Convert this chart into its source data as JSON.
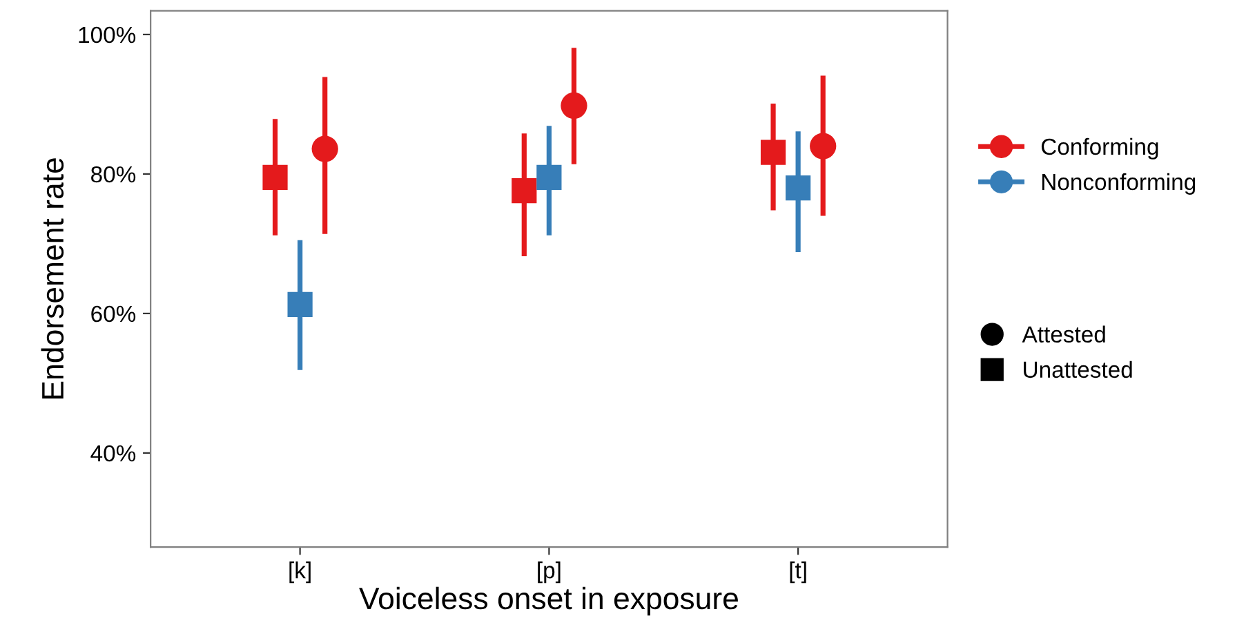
{
  "chart_data": {
    "type": "scatter",
    "xlabel": "Voiceless onset in exposure",
    "ylabel": "Endorsement rate",
    "categories": [
      "[k]",
      "[p]",
      "[t]"
    ],
    "ylim": [
      26.5,
      103.4
    ],
    "yticks": [
      {
        "value": 40,
        "label": "40%"
      },
      {
        "value": 60,
        "label": "60%"
      },
      {
        "value": 80,
        "label": "80%"
      },
      {
        "value": 100,
        "label": "100%"
      }
    ],
    "grid": false,
    "legend": "right",
    "series": [
      {
        "name": "Conforming",
        "color": "#e41a1c",
        "marker": "square",
        "values": [
          79.5,
          77.6,
          83.1
        ],
        "errors": [
          [
            71.2,
            87.9
          ],
          [
            68.2,
            85.8
          ],
          [
            74.8,
            90.1
          ]
        ]
      },
      {
        "name": "Nonconforming",
        "color": "#377eb8",
        "marker": "square",
        "values": [
          61.3,
          79.5,
          78.0
        ],
        "errors": [
          [
            51.9,
            70.5
          ],
          [
            71.2,
            86.9
          ],
          [
            68.8,
            86.1
          ]
        ]
      },
      {
        "color": "#e41a1c",
        "marker": "circle",
        "values": [
          83.6,
          89.8,
          84.0
        ],
        "errors": [
          [
            71.4,
            93.9
          ],
          [
            81.4,
            98.1
          ],
          [
            74.0,
            94.1
          ]
        ]
      },
      {
        "name": "Attested",
        "color": "#000000",
        "marker": "circle",
        "values": [
          null,
          null,
          null
        ]
      },
      {
        "name": "Unattested",
        "color": "#000000",
        "marker": "square",
        "values": [
          null,
          null,
          null
        ]
      }
    ]
  }
}
